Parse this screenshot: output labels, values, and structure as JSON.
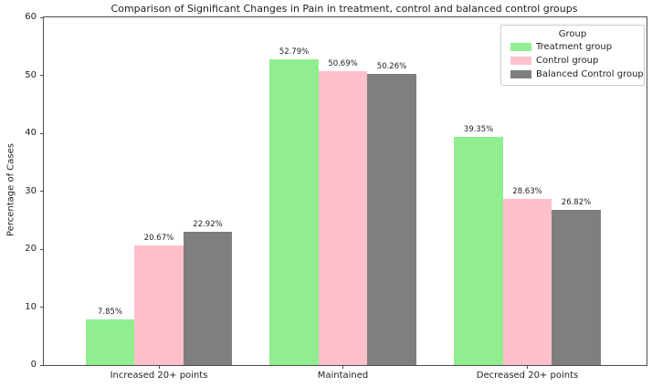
{
  "chart_data": {
    "type": "bar",
    "title": "Comparison of Significant Changes in Pain in treatment, control and balanced control groups",
    "categories": [
      "Increased 20+ points",
      "Maintained",
      "Decreased 20+ points"
    ],
    "series": [
      {
        "name": "Treatment group",
        "color": "#90ee90",
        "values": [
          7.85,
          52.79,
          39.35
        ],
        "labels": [
          "7.85%",
          "52.79%",
          "39.35%"
        ]
      },
      {
        "name": "Control group",
        "color": "#ffc0cb",
        "values": [
          20.67,
          50.69,
          28.63
        ],
        "labels": [
          "20.67%",
          "50.69%",
          "28.63%"
        ]
      },
      {
        "name": "Balanced Control group",
        "color": "#7f7f7f",
        "values": [
          22.92,
          50.26,
          26.82
        ],
        "labels": [
          "22.92%",
          "50.26%",
          "26.82%"
        ]
      }
    ],
    "xlabel": "",
    "ylabel": "Percentage of Cases",
    "ylim": [
      0,
      60
    ],
    "yticks": [
      0,
      10,
      20,
      30,
      40,
      50,
      60
    ],
    "legend": {
      "title": "Group",
      "position": "upper right"
    },
    "grid": false
  }
}
